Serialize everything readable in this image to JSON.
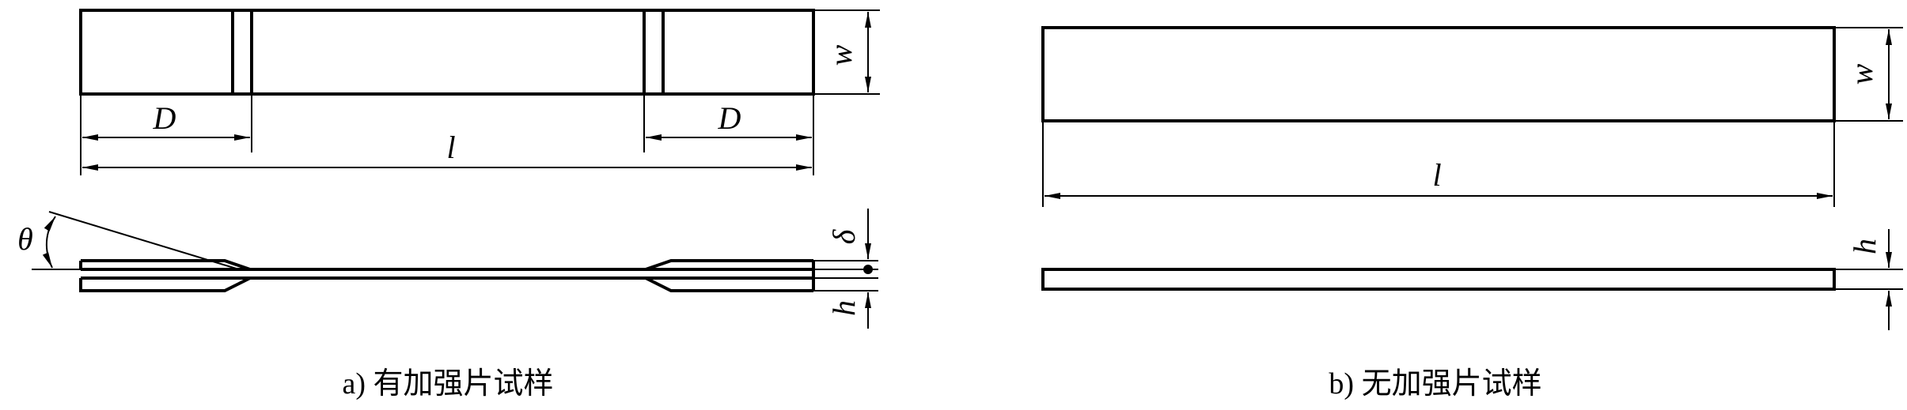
{
  "figure_a": {
    "caption": "a) 有加强片试样",
    "labels": {
      "width": "w",
      "tab_length_left": "D",
      "tab_length_right": "D",
      "length": "l",
      "bevel_angle": "θ",
      "tab_thickness": "δ",
      "thickness": "h"
    }
  },
  "figure_b": {
    "caption": "b) 无加强片试样",
    "labels": {
      "width": "w",
      "length": "l",
      "thickness": "h"
    }
  },
  "colors": {
    "line": "#000000",
    "background": "#ffffff"
  }
}
